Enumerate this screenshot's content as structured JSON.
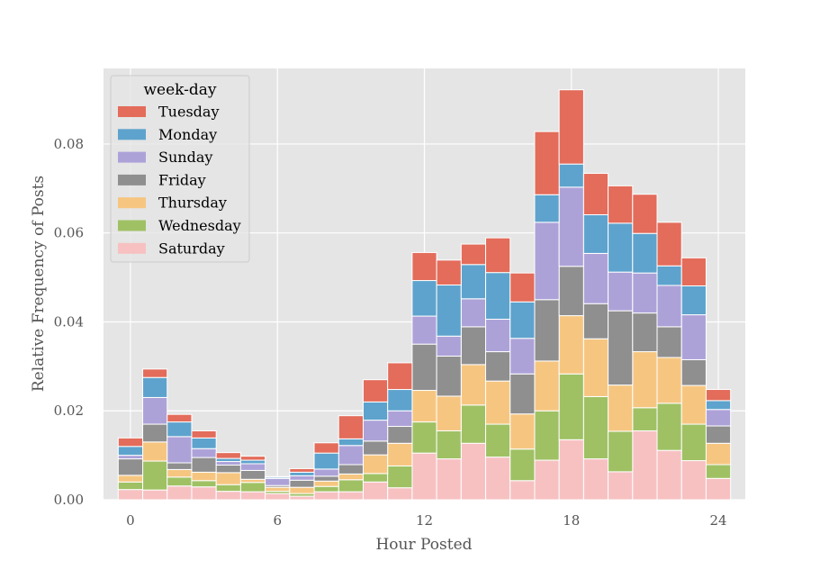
{
  "chart_data": {
    "type": "bar",
    "stacked": true,
    "bin_width": 1.0,
    "bin_starts": [
      -0.5,
      0.5,
      1.5,
      2.5,
      3.5,
      4.5,
      5.5,
      6.5,
      7.5,
      8.5,
      9.5,
      10.5,
      11.5,
      12.5,
      13.5,
      14.5,
      15.5,
      16.5,
      17.5,
      18.5,
      19.5,
      20.5,
      21.5,
      22.5,
      23.5
    ],
    "xlabel": "Hour Posted",
    "ylabel": "Relative Frequency of Posts",
    "xlim": [
      -1.1,
      25.1
    ],
    "ylim": [
      0,
      0.097
    ],
    "xticks": [
      0,
      6,
      12,
      18,
      24
    ],
    "xtick_labels": [
      "0",
      "6",
      "12",
      "18",
      "24"
    ],
    "yticks": [
      0.0,
      0.02,
      0.04,
      0.06,
      0.08
    ],
    "ytick_labels": [
      "0.00",
      "0.02",
      "0.04",
      "0.06",
      "0.08"
    ],
    "grid": true,
    "legend": {
      "title": "week-day",
      "placement": "top-left",
      "order": [
        "Tuesday",
        "Monday",
        "Sunday",
        "Friday",
        "Thursday",
        "Wednesday",
        "Saturday"
      ]
    },
    "series": [
      {
        "name": "Saturday",
        "color": "#f7c1c2",
        "values": [
          0.0023,
          0.0022,
          0.0031,
          0.0029,
          0.0019,
          0.0018,
          0.0014,
          0.0008,
          0.0018,
          0.0018,
          0.004,
          0.0027,
          0.0105,
          0.0092,
          0.0127,
          0.0096,
          0.0043,
          0.0089,
          0.0135,
          0.0092,
          0.0063,
          0.0155,
          0.0111,
          0.0088,
          0.0048
        ]
      },
      {
        "name": "Wednesday",
        "color": "#9fc164",
        "values": [
          0.0017,
          0.0065,
          0.002,
          0.0014,
          0.0015,
          0.0021,
          0.0005,
          0.0006,
          0.0012,
          0.0027,
          0.0019,
          0.0049,
          0.007,
          0.0063,
          0.0086,
          0.0074,
          0.0071,
          0.0111,
          0.0148,
          0.014,
          0.0091,
          0.0052,
          0.0106,
          0.0082,
          0.0031
        ]
      },
      {
        "name": "Thursday",
        "color": "#f6c681",
        "values": [
          0.0015,
          0.0043,
          0.0017,
          0.0019,
          0.0027,
          0.0007,
          0.0009,
          0.0014,
          0.0012,
          0.0013,
          0.0042,
          0.0051,
          0.0071,
          0.0078,
          0.0091,
          0.0097,
          0.0079,
          0.0112,
          0.0131,
          0.013,
          0.0104,
          0.0126,
          0.0103,
          0.0087,
          0.0048
        ]
      },
      {
        "name": "Friday",
        "color": "#8f8f8f",
        "values": [
          0.0037,
          0.004,
          0.0015,
          0.0033,
          0.0017,
          0.002,
          0.0004,
          0.0016,
          0.0011,
          0.0021,
          0.0031,
          0.0038,
          0.0104,
          0.009,
          0.0085,
          0.0066,
          0.009,
          0.0138,
          0.0111,
          0.0079,
          0.0167,
          0.0087,
          0.0069,
          0.0058,
          0.0039
        ]
      },
      {
        "name": "Sunday",
        "color": "#ada2d8",
        "values": [
          0.0008,
          0.006,
          0.0059,
          0.002,
          0.0008,
          0.0015,
          0.0016,
          0.001,
          0.0016,
          0.0043,
          0.0047,
          0.0035,
          0.0063,
          0.0045,
          0.0063,
          0.0073,
          0.008,
          0.0174,
          0.0178,
          0.0113,
          0.0087,
          0.009,
          0.0093,
          0.0101,
          0.0037
        ]
      },
      {
        "name": "Monday",
        "color": "#5ea3cd",
        "values": [
          0.002,
          0.0045,
          0.0033,
          0.0024,
          0.0007,
          0.0008,
          0.0003,
          0.0008,
          0.0036,
          0.0015,
          0.0041,
          0.0048,
          0.008,
          0.0115,
          0.0077,
          0.0105,
          0.0082,
          0.0062,
          0.0052,
          0.0087,
          0.011,
          0.0089,
          0.0044,
          0.0065,
          0.002
        ]
      },
      {
        "name": "Tuesday",
        "color": "#e36c5b",
        "values": [
          0.0019,
          0.0019,
          0.0017,
          0.0016,
          0.0013,
          0.0009,
          0.0001,
          0.0008,
          0.0023,
          0.0052,
          0.005,
          0.006,
          0.0063,
          0.0056,
          0.0046,
          0.0078,
          0.0065,
          0.0142,
          0.0167,
          0.0093,
          0.0084,
          0.0088,
          0.0098,
          0.0063,
          0.0025
        ]
      }
    ]
  }
}
